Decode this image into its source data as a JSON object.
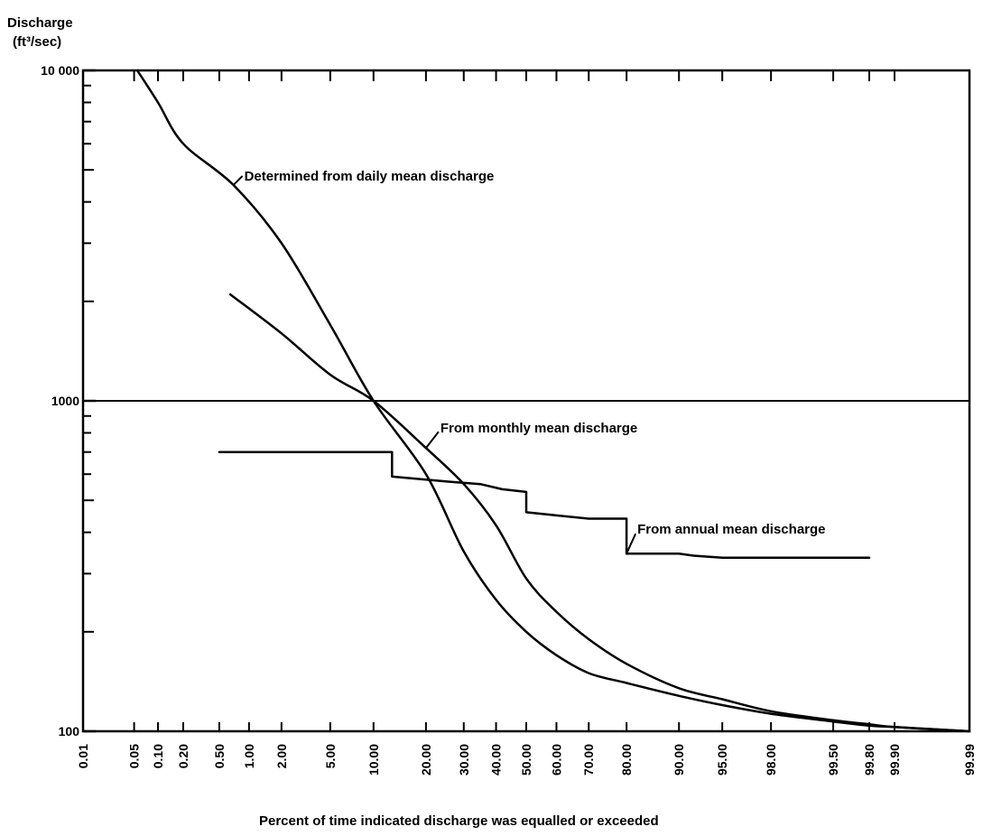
{
  "chart_data": {
    "type": "line",
    "y_scale": "log",
    "x_scale": "probability",
    "ylabel_line1": "Discharge",
    "ylabel_line2": "(ft³/sec)",
    "xlabel": "Percent of time indicated discharge was equalled or exceeded",
    "ylim": [
      100,
      10000
    ],
    "xlim": [
      0.01,
      99.99
    ],
    "y_ticks": [
      {
        "value": 100,
        "label": "100"
      },
      {
        "value": 1000,
        "label": "1000"
      },
      {
        "value": 10000,
        "label": "10 000"
      }
    ],
    "x_ticks": [
      {
        "value": 0.01,
        "label": "0.01"
      },
      {
        "value": 0.05,
        "label": "0.05"
      },
      {
        "value": 0.1,
        "label": "0.10"
      },
      {
        "value": 0.2,
        "label": "0.20"
      },
      {
        "value": 0.5,
        "label": "0.50"
      },
      {
        "value": 1,
        "label": "1.00"
      },
      {
        "value": 2,
        "label": "2.00"
      },
      {
        "value": 5,
        "label": "5.00"
      },
      {
        "value": 10,
        "label": "10.00"
      },
      {
        "value": 20,
        "label": "20.00"
      },
      {
        "value": 30,
        "label": "30.00"
      },
      {
        "value": 40,
        "label": "40.00"
      },
      {
        "value": 50,
        "label": "50.00"
      },
      {
        "value": 60,
        "label": "60.00"
      },
      {
        "value": 70,
        "label": "70.00"
      },
      {
        "value": 80,
        "label": "80.00"
      },
      {
        "value": 90,
        "label": "90.00"
      },
      {
        "value": 95,
        "label": "95.00"
      },
      {
        "value": 98,
        "label": "98.00"
      },
      {
        "value": 99.5,
        "label": "99.50"
      },
      {
        "value": 99.8,
        "label": "99.80"
      },
      {
        "value": 99.9,
        "label": "99.90"
      },
      {
        "value": 99.99,
        "label": "99.99"
      }
    ],
    "reference_line": {
      "y": 1000
    },
    "series": [
      {
        "name": "Determined from daily mean discharge",
        "step": false,
        "points": [
          [
            0.055,
            10000
          ],
          [
            0.1,
            8000
          ],
          [
            0.2,
            6000
          ],
          [
            0.7,
            4500
          ],
          [
            2,
            3000
          ],
          [
            5,
            1700
          ],
          [
            10,
            1000
          ],
          [
            20,
            600
          ],
          [
            30,
            350
          ],
          [
            40,
            250
          ],
          [
            50,
            200
          ],
          [
            60,
            170
          ],
          [
            70,
            150
          ],
          [
            80,
            140
          ],
          [
            90,
            128
          ],
          [
            95,
            120
          ],
          [
            98,
            113
          ],
          [
            99.5,
            107
          ],
          [
            99.8,
            104
          ],
          [
            99.9,
            103
          ],
          [
            99.99,
            100
          ]
        ]
      },
      {
        "name": "From monthly mean discharge",
        "step": false,
        "points": [
          [
            0.65,
            2100
          ],
          [
            2,
            1600
          ],
          [
            5,
            1200
          ],
          [
            10,
            1000
          ],
          [
            20,
            720
          ],
          [
            30,
            560
          ],
          [
            40,
            420
          ],
          [
            50,
            290
          ],
          [
            60,
            230
          ],
          [
            70,
            190
          ],
          [
            80,
            160
          ],
          [
            90,
            135
          ],
          [
            95,
            125
          ],
          [
            98,
            115
          ],
          [
            99.5,
            108
          ],
          [
            99.8,
            105
          ],
          [
            99.9,
            103
          ],
          [
            99.99,
            100
          ]
        ]
      },
      {
        "name": "From annual mean discharge",
        "step": true,
        "points": [
          [
            0.5,
            700
          ],
          [
            13,
            700
          ],
          [
            13,
            590
          ],
          [
            25,
            570
          ],
          [
            35,
            560
          ],
          [
            42,
            540
          ],
          [
            50,
            530
          ],
          [
            50,
            460
          ],
          [
            60,
            450
          ],
          [
            70,
            440
          ],
          [
            80,
            440
          ],
          [
            80,
            345
          ],
          [
            90,
            345
          ],
          [
            92,
            340
          ],
          [
            95,
            335
          ],
          [
            99.8,
            335
          ]
        ]
      }
    ],
    "annotations": [
      {
        "text": "Determined from daily mean discharge",
        "series": 0,
        "at": [
          0.7,
          4500
        ]
      },
      {
        "text": "From monthly mean discharge",
        "series": 1,
        "at": [
          20,
          720
        ]
      },
      {
        "text": "From annual mean discharge",
        "series": 2,
        "at": [
          80,
          345
        ]
      }
    ]
  }
}
